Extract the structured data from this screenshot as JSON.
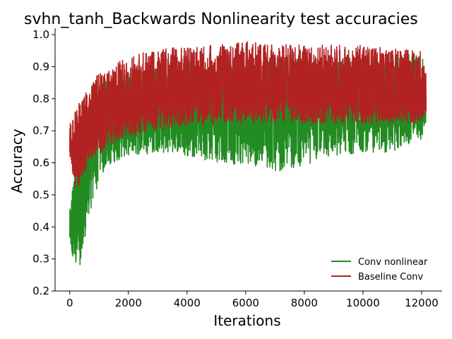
{
  "chart_data": {
    "type": "line",
    "title": "svhn_tanh_Backwards Nonlinearity test accuracies",
    "xlabel": "Iterations",
    "ylabel": "Accuracy",
    "xlim": [
      -500,
      12700
    ],
    "ylim": [
      0.2,
      1.02
    ],
    "xticks": [
      0,
      2000,
      4000,
      6000,
      8000,
      10000,
      12000
    ],
    "yticks": [
      0.2,
      0.3,
      0.4,
      0.5,
      0.6,
      0.7,
      0.8,
      0.9,
      1.0
    ],
    "grid": false,
    "legend_position": "bottom-right",
    "x_range": [
      0,
      12150
    ],
    "series": [
      {
        "name": "Conv nonlinear",
        "color": "#228b22",
        "x": [
          0,
          100,
          200,
          300,
          400,
          500,
          600,
          800,
          1000,
          1500,
          2000,
          3000,
          4000,
          5000,
          6000,
          7000,
          8000,
          9000,
          10000,
          11000,
          12000,
          12150
        ],
        "low": [
          0.33,
          0.28,
          0.29,
          0.26,
          0.24,
          0.35,
          0.42,
          0.46,
          0.55,
          0.6,
          0.62,
          0.63,
          0.62,
          0.6,
          0.59,
          0.57,
          0.59,
          0.62,
          0.63,
          0.63,
          0.67,
          0.72
        ],
        "high": [
          0.45,
          0.56,
          0.62,
          0.66,
          0.7,
          0.75,
          0.78,
          0.82,
          0.86,
          0.88,
          0.89,
          0.91,
          0.92,
          0.92,
          0.92,
          0.93,
          0.93,
          0.94,
          0.93,
          0.94,
          0.94,
          0.88
        ]
      },
      {
        "name": "Baseline Conv",
        "color": "#b22222",
        "x": [
          0,
          100,
          200,
          300,
          400,
          500,
          600,
          800,
          1000,
          1500,
          2000,
          3000,
          4000,
          5000,
          6000,
          7000,
          8000,
          9000,
          10000,
          11000,
          12000,
          12150
        ],
        "low": [
          0.63,
          0.52,
          0.5,
          0.52,
          0.54,
          0.56,
          0.58,
          0.6,
          0.62,
          0.66,
          0.68,
          0.7,
          0.71,
          0.72,
          0.72,
          0.72,
          0.72,
          0.72,
          0.72,
          0.72,
          0.72,
          0.75
        ],
        "high": [
          0.73,
          0.75,
          0.77,
          0.79,
          0.8,
          0.82,
          0.84,
          0.86,
          0.88,
          0.91,
          0.93,
          0.96,
          0.96,
          0.97,
          0.98,
          0.97,
          0.97,
          0.97,
          0.97,
          0.96,
          0.95,
          0.88
        ]
      }
    ]
  }
}
